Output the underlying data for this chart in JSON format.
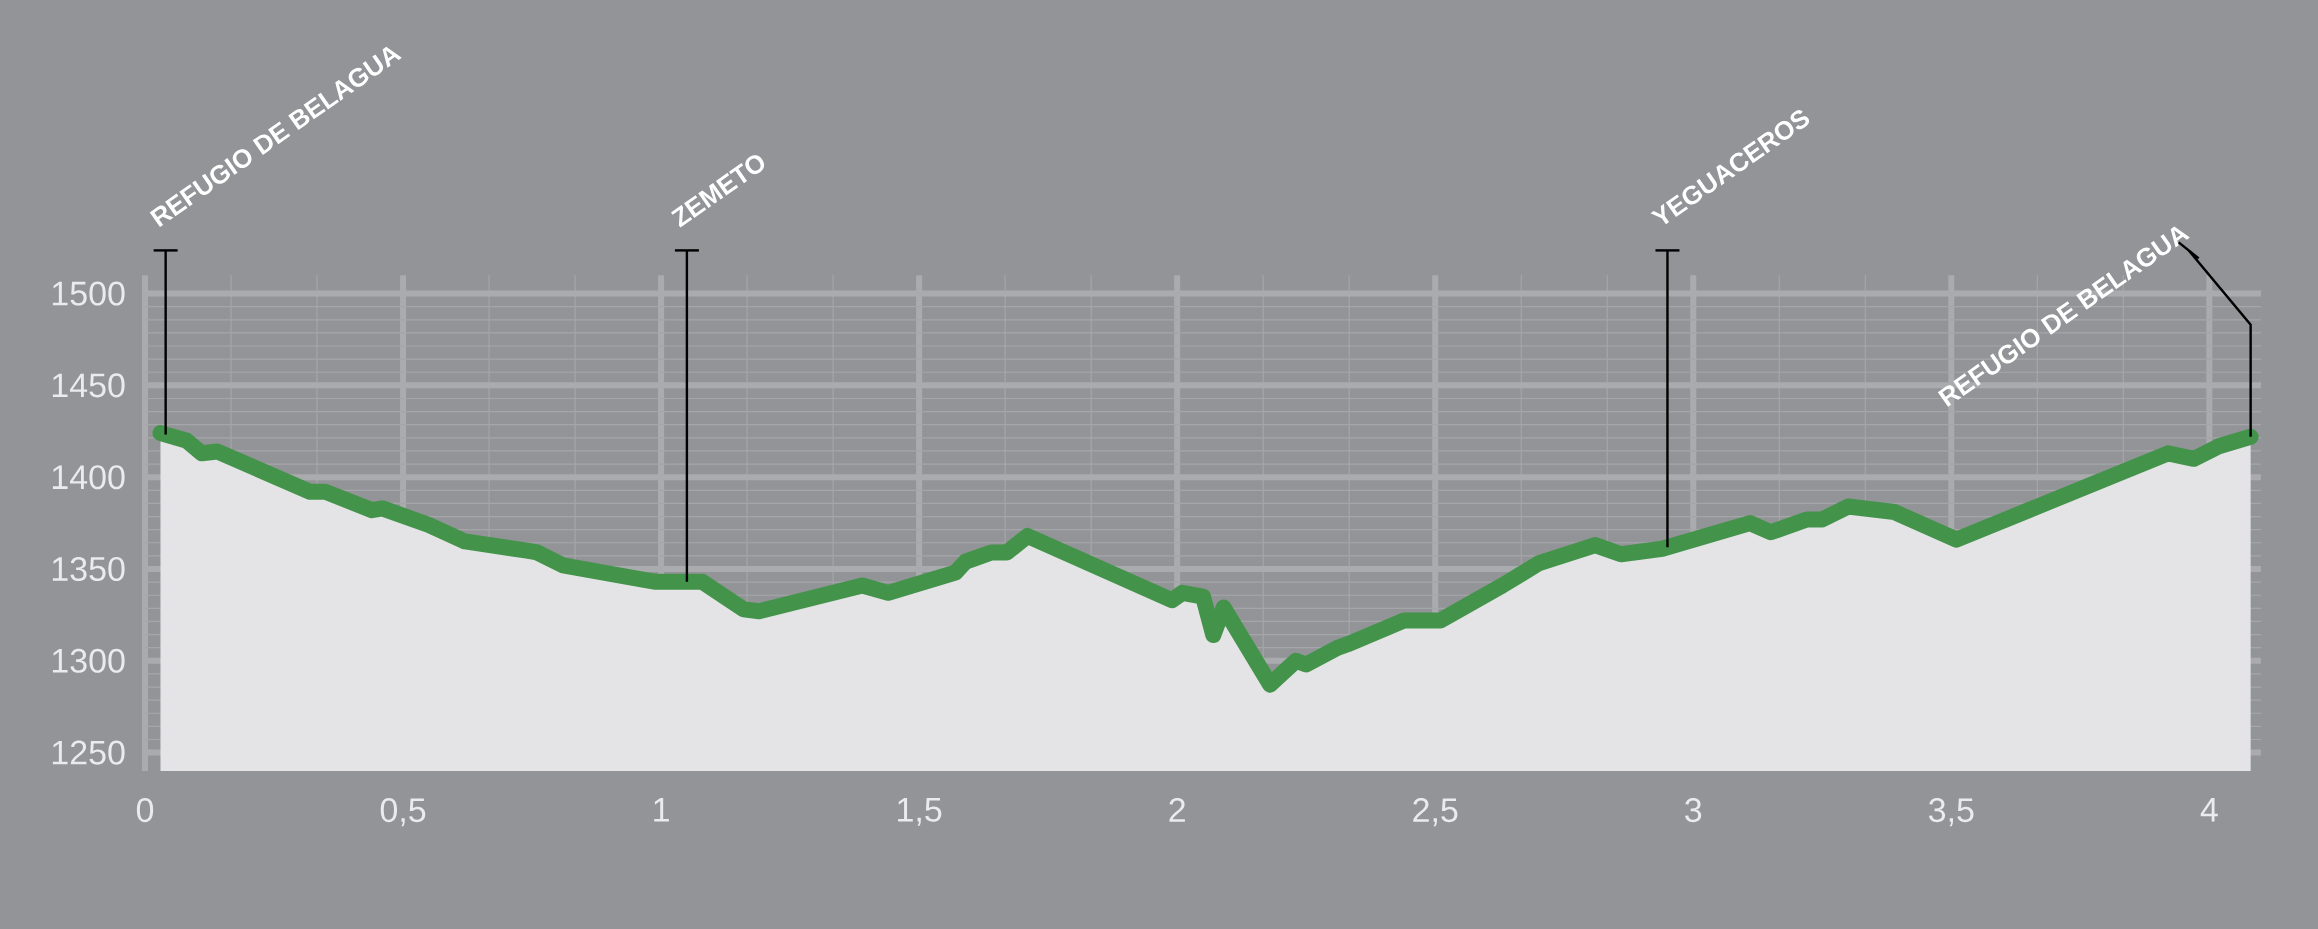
{
  "chart_data": {
    "type": "area",
    "color": "#43944a",
    "x": [
      0.03,
      0.08,
      0.11,
      0.14,
      0.32,
      0.35,
      0.44,
      0.46,
      0.55,
      0.62,
      0.74,
      0.76,
      0.81,
      0.97,
      0.99,
      1.08,
      1.16,
      1.19,
      1.39,
      1.44,
      1.57,
      1.59,
      1.64,
      1.67,
      1.71,
      1.99,
      2.01,
      2.05,
      2.07,
      2.09,
      2.18,
      2.23,
      2.25,
      2.31,
      2.33,
      2.44,
      2.51,
      2.63,
      2.7,
      2.81,
      2.86,
      2.94,
      3.11,
      3.15,
      3.22,
      3.25,
      3.3,
      3.39,
      3.51,
      3.92,
      3.97,
      4.02,
      4.08
    ],
    "values": [
      1424,
      1420,
      1413,
      1414,
      1392,
      1392,
      1382,
      1383,
      1374,
      1365,
      1360,
      1359,
      1352,
      1344,
      1343,
      1343,
      1328,
      1327,
      1341,
      1337,
      1348,
      1354,
      1359,
      1359,
      1368,
      1333,
      1337,
      1335,
      1314,
      1329,
      1287,
      1300,
      1298,
      1307,
      1309,
      1322,
      1322,
      1341,
      1353,
      1363,
      1358,
      1361,
      1375,
      1370,
      1377,
      1377,
      1384,
      1381,
      1366,
      1413,
      1410,
      1417,
      1422
    ],
    "xlim": [
      0,
      4.1
    ],
    "ylim": [
      1240,
      1510
    ],
    "xticks": [
      0,
      {
        "value": 0.5,
        "label": "0,5"
      },
      1,
      {
        "value": 1.5,
        "label": "1,5"
      },
      2,
      {
        "value": 2.5,
        "label": "2,5"
      },
      3,
      {
        "value": 3.5,
        "label": "3,5"
      },
      4
    ],
    "yticks": [
      1250,
      1300,
      1350,
      1400,
      1450,
      1500
    ],
    "grid": true,
    "marker": "none",
    "line_style": "solid",
    "ref_lines": [
      {
        "axis": "x",
        "value": 0.04,
        "label": "REFUGIO DE BELAGUA"
      },
      {
        "axis": "x",
        "value": 1.05,
        "label": "ZEMETO"
      },
      {
        "axis": "x",
        "value": 2.95,
        "label": "YEGUACEROS"
      },
      {
        "axis": "x",
        "value": 4.08,
        "label": "REFUGIO DE BELAGUA"
      }
    ]
  }
}
